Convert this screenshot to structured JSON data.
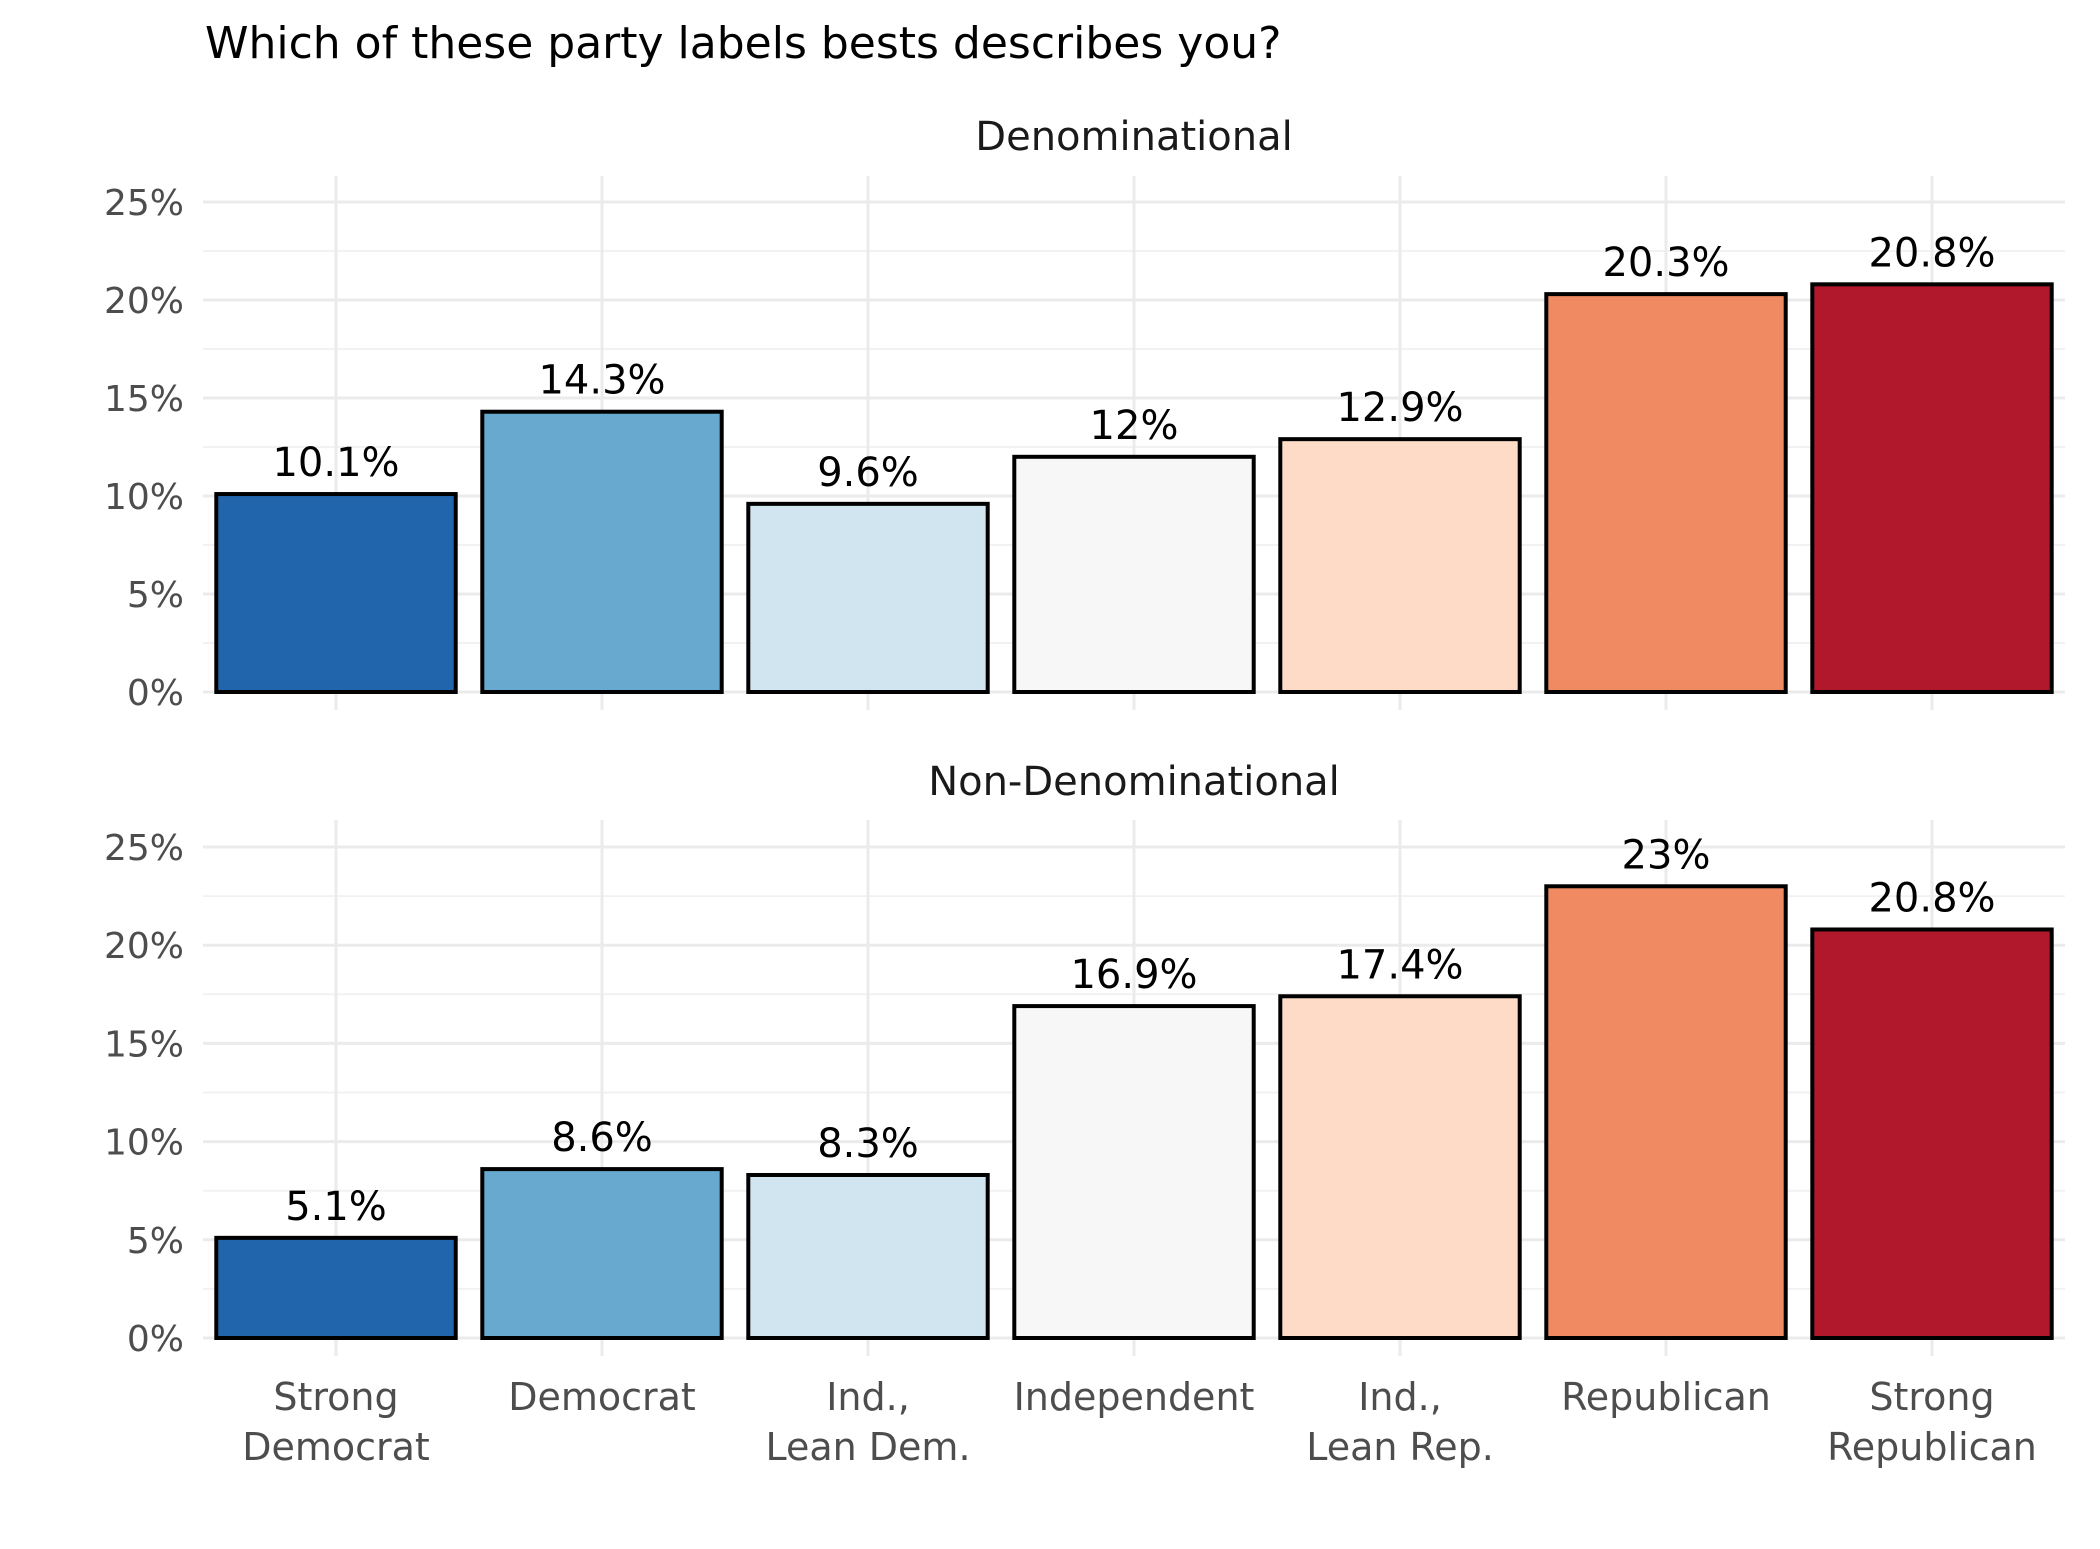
{
  "chart_data": {
    "type": "bar",
    "title": "Which of these party labels bests describes you?",
    "categories": [
      [
        "Strong",
        "Democrat"
      ],
      [
        "Democrat"
      ],
      [
        "Ind.,",
        "Lean Dem."
      ],
      [
        "Independent"
      ],
      [
        "Ind.,",
        "Lean Rep."
      ],
      [
        "Republican"
      ],
      [
        "Strong",
        "Republican"
      ]
    ],
    "colors": [
      "#2166ac",
      "#67a9cf",
      "#d1e5f0",
      "#f7f7f7",
      "#fddbc7",
      "#ef8a62",
      "#b2182b"
    ],
    "ylim": [
      0,
      25
    ],
    "yticks": [
      0,
      5,
      10,
      15,
      20,
      25
    ],
    "ytick_labels": [
      "0%",
      "5%",
      "10%",
      "15%",
      "20%",
      "25%"
    ],
    "xlabel": "",
    "ylabel": "",
    "legend": "none",
    "grid": true,
    "facets": [
      {
        "name": "Denominational",
        "values": [
          10.1,
          14.3,
          9.6,
          12,
          12.9,
          20.3,
          20.8
        ],
        "labels": [
          "10.1%",
          "14.3%",
          "9.6%",
          "12%",
          "12.9%",
          "20.3%",
          "20.8%"
        ]
      },
      {
        "name": "Non-Denominational",
        "values": [
          5.1,
          8.6,
          8.3,
          16.9,
          17.4,
          23,
          20.8
        ],
        "labels": [
          "5.1%",
          "8.6%",
          "8.3%",
          "16.9%",
          "17.4%",
          "23%",
          "20.8%"
        ]
      }
    ]
  }
}
